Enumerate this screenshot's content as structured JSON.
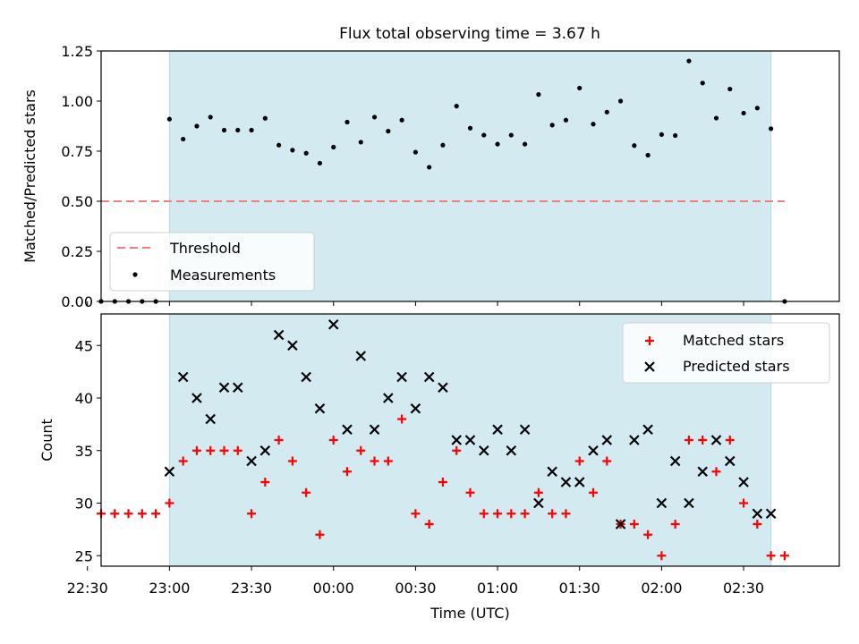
{
  "title": "Flux total observing time = 3.67 h",
  "chart_data": [
    {
      "type": "scatter",
      "panel": "top",
      "ylabel": "Matched/Predicted stars",
      "ylim": [
        0,
        1.25
      ],
      "yticks": [
        "0.00",
        "0.25",
        "0.50",
        "0.75",
        "1.00",
        "1.25"
      ],
      "xlim_minutes": [
        -25,
        245
      ],
      "shaded_span_minutes": [
        0,
        220
      ],
      "shade_color": "#d3eaf1",
      "threshold": {
        "name": "Threshold",
        "value": 0.5,
        "x_from": -25,
        "x_to": 225,
        "color": "#f08080",
        "style": "dashed"
      },
      "series": [
        {
          "name": "Measurements",
          "marker": "dot",
          "color": "#000000",
          "x": [
            -25,
            -20,
            -15,
            -10,
            -5,
            0,
            5,
            10,
            15,
            20,
            25,
            30,
            35,
            40,
            45,
            50,
            55,
            60,
            65,
            70,
            75,
            80,
            85,
            90,
            95,
            100,
            105,
            110,
            115,
            120,
            125,
            130,
            135,
            140,
            145,
            150,
            155,
            160,
            165,
            170,
            175,
            180,
            185,
            190,
            195,
            200,
            205,
            210,
            215,
            220,
            225
          ],
          "values": [
            0,
            0,
            0,
            0,
            0,
            0.91,
            0.81,
            0.875,
            0.92,
            0.855,
            0.855,
            0.855,
            0.914,
            0.78,
            0.755,
            0.74,
            0.69,
            0.77,
            0.895,
            0.795,
            0.92,
            0.85,
            0.905,
            0.745,
            0.67,
            0.78,
            0.975,
            0.865,
            0.83,
            0.785,
            0.83,
            0.785,
            1.033,
            0.88,
            0.905,
            1.065,
            0.885,
            0.945,
            1.0,
            0.778,
            0.73,
            0.833,
            0.828,
            1.2,
            1.09,
            0.915,
            1.06,
            0.94,
            0.965,
            0.862,
            0
          ]
        }
      ],
      "legend": {
        "position": "lower-left",
        "entries": [
          "Threshold",
          "Measurements"
        ]
      }
    },
    {
      "type": "scatter",
      "panel": "bottom",
      "ylabel": "Count",
      "xlabel": "Time (UTC)",
      "ylim": [
        24,
        48
      ],
      "yticks": [
        "25",
        "30",
        "35",
        "40",
        "45"
      ],
      "xlim_minutes": [
        -25,
        245
      ],
      "xticks": [
        "22:30",
        "23:00",
        "23:30",
        "00:00",
        "00:30",
        "01:00",
        "01:30",
        "02:00",
        "02:30"
      ],
      "shaded_span_minutes": [
        0,
        220
      ],
      "shade_color": "#d3eaf1",
      "series": [
        {
          "name": "Matched stars",
          "marker": "plus",
          "color": "#ff0000",
          "x": [
            -25,
            -20,
            -15,
            -10,
            -5,
            0,
            5,
            10,
            15,
            20,
            25,
            30,
            35,
            40,
            45,
            50,
            55,
            60,
            65,
            70,
            75,
            80,
            85,
            90,
            95,
            100,
            105,
            110,
            115,
            120,
            125,
            130,
            135,
            140,
            145,
            150,
            155,
            160,
            165,
            170,
            175,
            180,
            185,
            190,
            195,
            200,
            205,
            210,
            215,
            220,
            225
          ],
          "values": [
            29,
            29,
            29,
            29,
            29,
            30,
            34,
            35,
            35,
            35,
            35,
            29,
            32,
            36,
            34,
            31,
            27,
            36,
            33,
            35,
            34,
            34,
            38,
            29,
            28,
            32,
            35,
            31,
            29,
            29,
            29,
            29,
            31,
            29,
            29,
            34,
            31,
            34,
            28,
            28,
            27,
            25,
            28,
            36,
            36,
            33,
            36,
            30,
            28,
            25,
            25
          ]
        },
        {
          "name": "Predicted stars",
          "marker": "cross",
          "color": "#000000",
          "x": [
            0,
            5,
            10,
            15,
            20,
            25,
            30,
            35,
            40,
            45,
            50,
            55,
            60,
            65,
            70,
            75,
            80,
            85,
            90,
            95,
            100,
            105,
            110,
            115,
            120,
            125,
            130,
            135,
            140,
            145,
            150,
            155,
            160,
            165,
            170,
            175,
            180,
            185,
            190,
            195,
            200,
            205,
            210,
            215,
            220
          ],
          "values": [
            33,
            42,
            40,
            38,
            41,
            41,
            34,
            35,
            46,
            45,
            42,
            39,
            47,
            37,
            44,
            37,
            40,
            42,
            39,
            42,
            41,
            36,
            36,
            35,
            37,
            35,
            37,
            30,
            33,
            32,
            32,
            35,
            36,
            28,
            36,
            37,
            30,
            34,
            30,
            33,
            36,
            34,
            32,
            29,
            29
          ]
        }
      ],
      "legend": {
        "position": "top-right",
        "entries": [
          "Matched stars",
          "Predicted stars"
        ]
      }
    }
  ]
}
